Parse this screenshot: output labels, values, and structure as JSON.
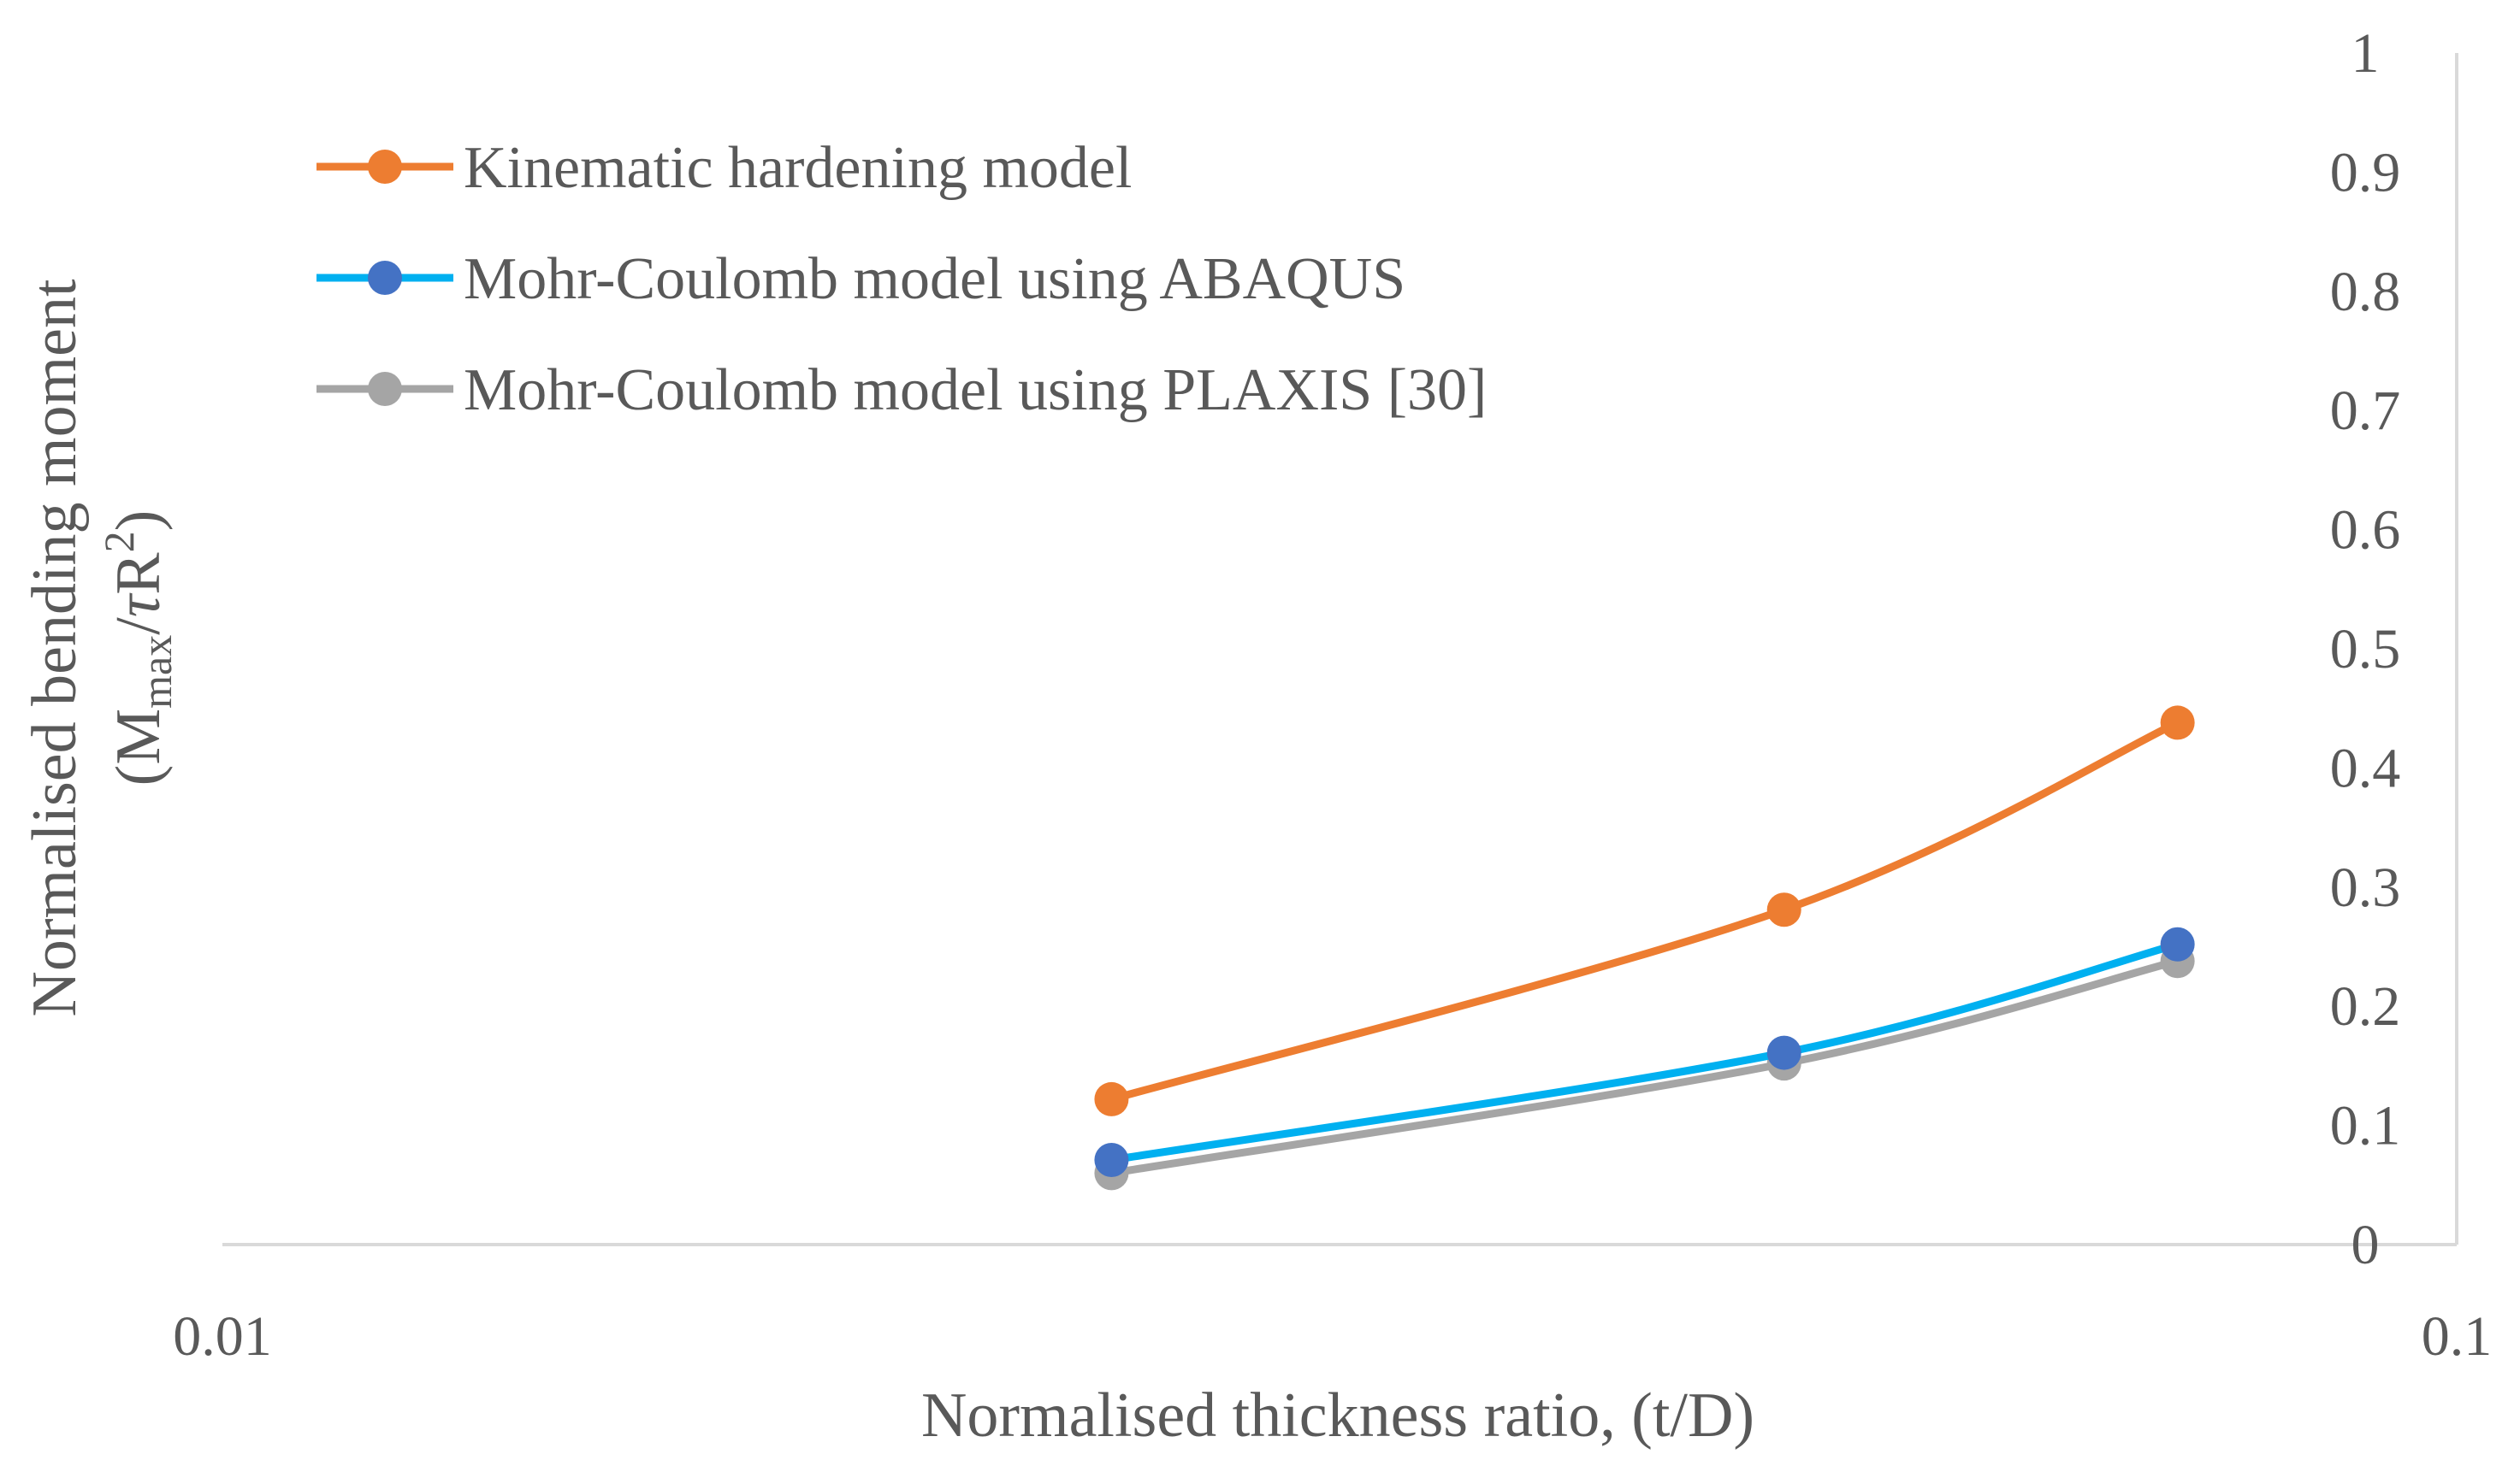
{
  "chart_data": {
    "type": "line",
    "x_scale": "log",
    "xlim": [
      0.01,
      0.1
    ],
    "ylim": [
      0,
      1
    ],
    "x_ticks": [
      {
        "value": 0.01,
        "label": "0.01"
      },
      {
        "value": 0.1,
        "label": "0.1"
      }
    ],
    "y_ticks": [
      {
        "value": 0,
        "label": "0"
      },
      {
        "value": 0.1,
        "label": "0.1"
      },
      {
        "value": 0.2,
        "label": "0.2"
      },
      {
        "value": 0.3,
        "label": "0.3"
      },
      {
        "value": 0.4,
        "label": "0.4"
      },
      {
        "value": 0.5,
        "label": "0.5"
      },
      {
        "value": 0.6,
        "label": "0.6"
      },
      {
        "value": 0.7,
        "label": "0.7"
      },
      {
        "value": 0.8,
        "label": "0.8"
      },
      {
        "value": 0.9,
        "label": "0.9"
      },
      {
        "value": 1,
        "label": "1"
      }
    ],
    "y_axis_side": "right",
    "grid": false,
    "legend_position": "top-left",
    "xlabel": "Normalised thickness ratio, (t/D)",
    "ylabel": {
      "line1": "Normalised bending moment",
      "line2_open": "(M",
      "line2_sub": "max",
      "line2_slash": "/",
      "line2_tau": "τ",
      "line2_R": "R",
      "line2_sup": "2",
      "line2_close": ")"
    },
    "x": [
      0.025,
      0.05,
      0.075
    ],
    "series": [
      {
        "name": "Kinematic hardening model",
        "line_color": "#ED7D31",
        "marker_color": "#ED7D31",
        "values": [
          0.122,
          0.281,
          0.438
        ]
      },
      {
        "name": "Mohr-Coulomb model using ABAQUS",
        "line_color": "#00B0F0",
        "marker_color": "#4472C4",
        "values": [
          0.071,
          0.161,
          0.252
        ]
      },
      {
        "name": "Mohr-Coulomb model using PLAXIS [30]",
        "line_color": "#A5A5A5",
        "marker_color": "#A5A5A5",
        "values": [
          0.06,
          0.152,
          0.238
        ]
      }
    ]
  }
}
